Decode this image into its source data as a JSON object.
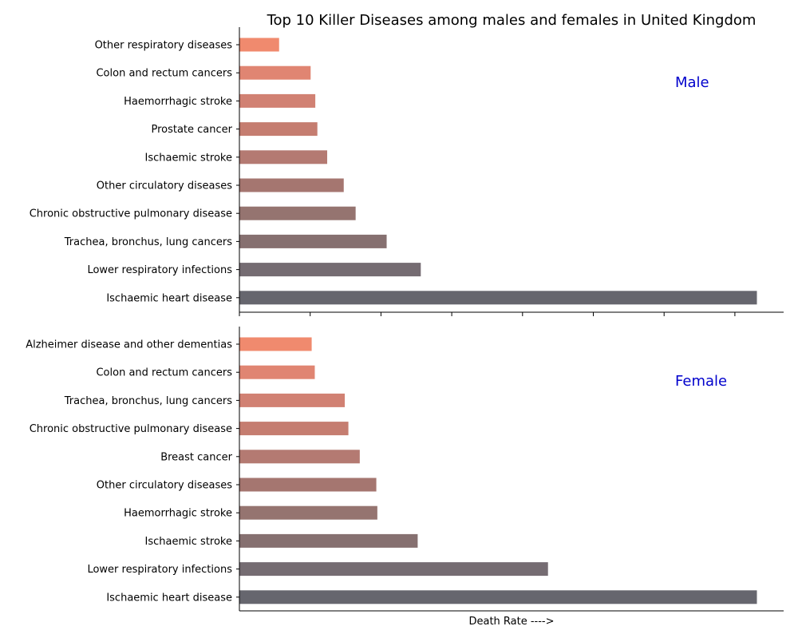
{
  "chart_data": {
    "type": "bar",
    "orientation": "horizontal",
    "title": "Top 10 Killer Diseases among males and females in United Kingdom",
    "xlabel": "Death Rate ---->",
    "x_tick_labels_shown": false,
    "grid": false,
    "panels": [
      {
        "label": "Male",
        "categories": [
          "Other respiratory diseases",
          "Colon and rectum cancers",
          "Haemorrhagic stroke",
          "Prostate cancer",
          "Ischaemic stroke",
          "Other circulatory diseases",
          "Chronic obstructive pulmonary disease",
          "Trachea, bronchus, lung cancers",
          "Lower respiratory infections",
          "Ischaemic heart disease"
        ],
        "values": [
          7.6,
          13.7,
          14.6,
          15.0,
          16.9,
          20.1,
          22.4,
          28.4,
          35.0,
          100.0
        ],
        "colors": [
          "#f08a6e",
          "#e08572",
          "#d18173",
          "#c57d70",
          "#b47a72",
          "#a57670",
          "#957470",
          "#867070",
          "#756c72",
          "#66666e"
        ]
      },
      {
        "label": "Female",
        "categories": [
          "Alzheimer disease and other dementias",
          "Colon and rectum cancers",
          "Trachea, bronchus, lung cancers",
          "Chronic obstructive pulmonary disease",
          "Breast cancer",
          "Other circulatory diseases",
          "Haemorrhagic stroke",
          "Ischaemic stroke",
          "Lower respiratory infections",
          "Ischaemic heart disease"
        ],
        "values": [
          13.9,
          14.5,
          20.3,
          21.0,
          23.2,
          26.4,
          26.6,
          34.4,
          59.6,
          100.0
        ],
        "colors": [
          "#f08a6e",
          "#e08572",
          "#d18173",
          "#c57d70",
          "#b47a72",
          "#a57670",
          "#957470",
          "#867070",
          "#756c72",
          "#66666e"
        ]
      }
    ],
    "label_color": "#0000cc"
  }
}
